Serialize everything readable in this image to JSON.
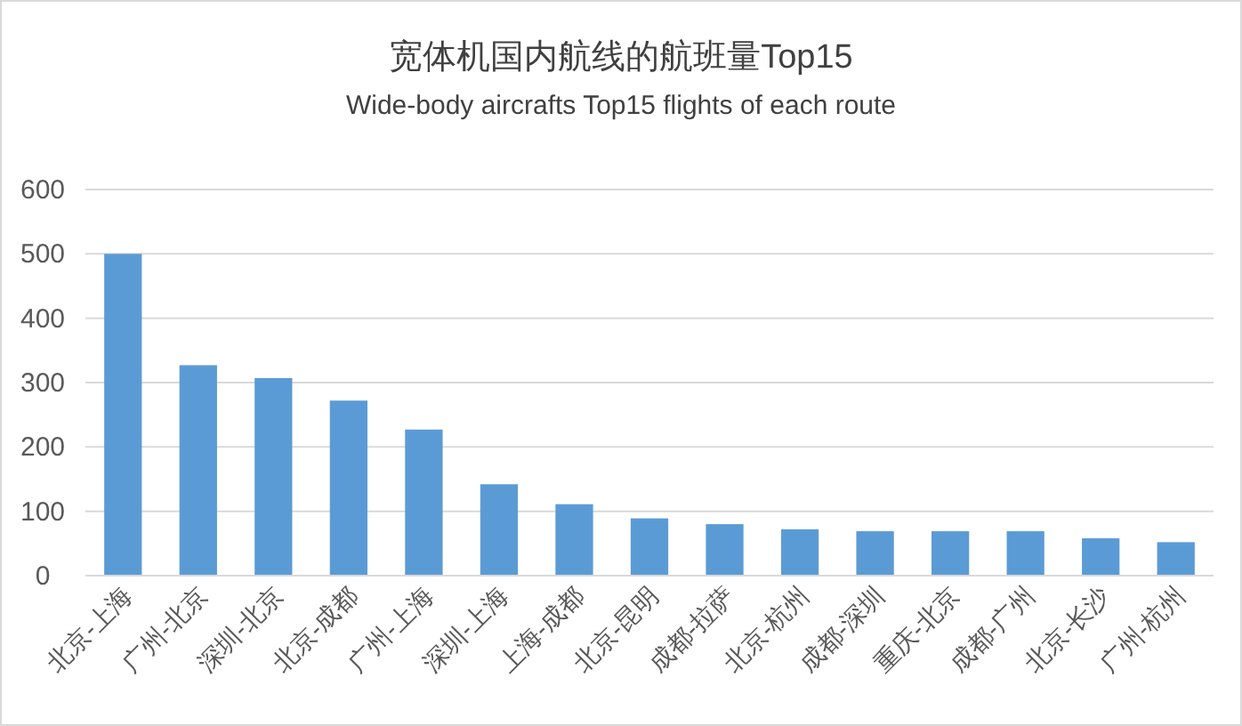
{
  "chart_data": {
    "type": "bar",
    "title": "宽体机国内航线的航班量Top15",
    "subtitle": "Wide-body aircrafts Top15 flights of each route",
    "categories": [
      "北京-上海",
      "广州-北京",
      "深圳-北京",
      "北京-成都",
      "广州-上海",
      "深圳-上海",
      "上海-成都",
      "北京-昆明",
      "成都-拉萨",
      "北京-杭州",
      "成都-深圳",
      "重庆-北京",
      "成都-广州",
      "北京-长沙",
      "广州-杭州"
    ],
    "values": [
      500,
      327,
      307,
      272,
      227,
      142,
      111,
      89,
      80,
      72,
      69,
      69,
      69,
      58,
      52
    ],
    "color": "#5b9bd5",
    "ylim": [
      0,
      600
    ],
    "yticks": [
      0,
      100,
      200,
      300,
      400,
      500,
      600
    ],
    "grid": "y",
    "legend": false
  }
}
